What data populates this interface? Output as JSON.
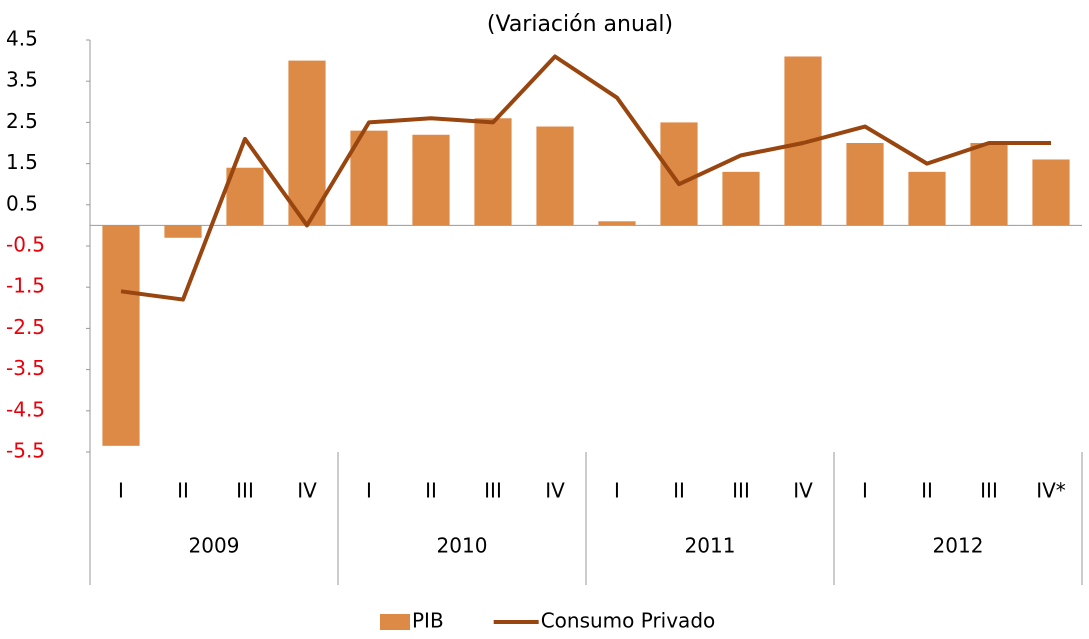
{
  "chart_data": {
    "type": "bar_line",
    "title": "(Variación anual)",
    "categories": [
      "I",
      "II",
      "III",
      "IV",
      "I",
      "II",
      "III",
      "IV",
      "I",
      "II",
      "III",
      "IV",
      "I",
      "II",
      "III",
      "IV*"
    ],
    "groups": [
      {
        "label": "2009",
        "span": 4
      },
      {
        "label": "2010",
        "span": 4
      },
      {
        "label": "2011",
        "span": 4
      },
      {
        "label": "2012",
        "span": 4
      }
    ],
    "series": [
      {
        "name": "PIB",
        "kind": "bar",
        "color": "#de8a47",
        "values": [
          -5.35,
          -0.3,
          1.4,
          4.0,
          2.3,
          2.2,
          2.6,
          2.4,
          0.1,
          2.5,
          1.3,
          4.1,
          2.0,
          1.3,
          2.0,
          1.6
        ]
      },
      {
        "name": "Consumo Privado",
        "kind": "line",
        "color": "#98450f",
        "values": [
          -1.6,
          -1.8,
          2.1,
          0.0,
          2.5,
          2.6,
          2.5,
          4.1,
          3.1,
          1.0,
          1.7,
          2.0,
          2.4,
          1.5,
          2.0,
          2.0
        ]
      }
    ],
    "ylim": [
      -5.5,
      4.5
    ],
    "yticks": [
      4.5,
      3.5,
      2.5,
      1.5,
      0.5,
      -0.5,
      -1.5,
      -2.5,
      -3.5,
      -4.5,
      -5.5
    ],
    "tick_color": "#000000",
    "negative_tick_color": "#e8000b",
    "legend": "bottom"
  }
}
